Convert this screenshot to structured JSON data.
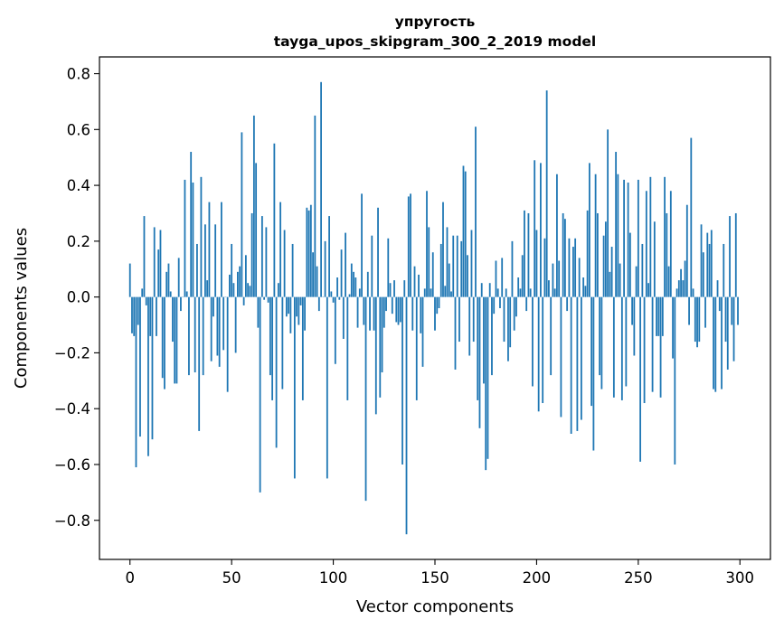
{
  "chart_data": {
    "type": "bar",
    "title_line1": "упругость",
    "title_line2": "tayga_upos_skipgram_300_2_2019 model",
    "xlabel": "Vector components",
    "ylabel": "Components values",
    "xlim": [
      -15,
      315
    ],
    "ylim": [
      -0.94,
      0.86
    ],
    "xticks": [
      0,
      50,
      100,
      150,
      200,
      250,
      300
    ],
    "xtick_labels": [
      "0",
      "50",
      "100",
      "150",
      "200",
      "250",
      "300"
    ],
    "yticks": [
      -0.8,
      -0.6,
      -0.4,
      -0.2,
      0.0,
      0.2,
      0.4,
      0.6,
      0.8
    ],
    "ytick_labels": [
      "−0.8",
      "−0.6",
      "−0.4",
      "−0.2",
      "0.0",
      "0.2",
      "0.4",
      "0.6",
      "0.8"
    ],
    "bar_color": "#1f77b4",
    "values": [
      0.12,
      -0.13,
      -0.14,
      -0.61,
      -0.1,
      -0.5,
      0.03,
      0.29,
      -0.03,
      -0.57,
      -0.14,
      -0.51,
      0.25,
      -0.14,
      0.17,
      0.24,
      -0.29,
      -0.33,
      0.09,
      0.12,
      0.02,
      -0.16,
      -0.31,
      -0.31,
      0.14,
      -0.05,
      0.0,
      0.42,
      0.02,
      -0.28,
      0.52,
      0.41,
      -0.27,
      0.19,
      -0.48,
      0.43,
      -0.28,
      0.26,
      0.06,
      0.34,
      -0.23,
      -0.07,
      0.26,
      -0.21,
      -0.25,
      0.34,
      -0.19,
      0.0,
      -0.34,
      0.08,
      0.19,
      0.05,
      -0.2,
      0.09,
      0.11,
      0.59,
      -0.03,
      0.15,
      0.05,
      0.04,
      0.3,
      0.65,
      0.48,
      -0.11,
      -0.7,
      0.29,
      -0.01,
      0.25,
      -0.02,
      -0.28,
      -0.37,
      0.55,
      -0.54,
      0.05,
      0.34,
      -0.33,
      0.24,
      -0.07,
      -0.06,
      -0.13,
      0.19,
      -0.65,
      -0.07,
      -0.1,
      -0.03,
      -0.37,
      -0.12,
      0.32,
      0.31,
      0.33,
      0.16,
      0.65,
      0.11,
      -0.05,
      0.77,
      0.0,
      0.2,
      -0.65,
      0.29,
      0.02,
      -0.02,
      -0.24,
      0.07,
      -0.01,
      0.17,
      -0.15,
      0.23,
      -0.37,
      0.01,
      0.12,
      0.09,
      0.07,
      -0.11,
      0.03,
      0.37,
      -0.1,
      -0.73,
      0.09,
      -0.12,
      0.22,
      -0.12,
      -0.42,
      0.32,
      -0.36,
      -0.27,
      -0.11,
      -0.05,
      0.21,
      0.05,
      -0.06,
      0.06,
      -0.09,
      -0.1,
      -0.09,
      -0.6,
      0.06,
      -0.85,
      0.36,
      0.37,
      -0.12,
      0.11,
      -0.37,
      0.08,
      -0.13,
      -0.25,
      0.03,
      0.38,
      0.25,
      0.03,
      0.16,
      -0.12,
      -0.06,
      -0.04,
      0.19,
      0.34,
      0.04,
      0.25,
      0.12,
      0.02,
      0.22,
      -0.26,
      0.22,
      -0.16,
      0.2,
      0.47,
      0.45,
      0.15,
      -0.21,
      0.24,
      -0.16,
      0.61,
      -0.37,
      -0.47,
      0.05,
      -0.31,
      -0.62,
      -0.58,
      0.05,
      -0.28,
      -0.06,
      0.13,
      0.03,
      -0.04,
      0.14,
      -0.16,
      0.03,
      -0.23,
      -0.18,
      0.2,
      -0.12,
      -0.07,
      0.07,
      0.03,
      0.15,
      0.31,
      -0.05,
      0.3,
      0.03,
      -0.32,
      0.49,
      0.24,
      -0.41,
      0.48,
      -0.38,
      0.21,
      0.74,
      0.06,
      -0.28,
      0.12,
      0.03,
      0.44,
      0.13,
      -0.43,
      0.3,
      0.28,
      -0.05,
      0.21,
      -0.49,
      0.18,
      0.21,
      -0.48,
      0.14,
      -0.44,
      0.07,
      0.04,
      0.31,
      0.48,
      -0.39,
      -0.55,
      0.44,
      0.3,
      -0.28,
      -0.33,
      0.22,
      0.27,
      0.6,
      0.09,
      0.18,
      -0.36,
      0.52,
      0.44,
      0.12,
      -0.37,
      0.42,
      -0.32,
      0.41,
      0.23,
      -0.1,
      -0.21,
      0.11,
      0.42,
      -0.59,
      0.19,
      -0.38,
      0.38,
      0.05,
      0.43,
      -0.34,
      0.27,
      -0.14,
      -0.14,
      -0.36,
      -0.14,
      0.43,
      0.3,
      0.11,
      0.38,
      -0.22,
      -0.6,
      0.03,
      0.06,
      0.1,
      0.06,
      0.13,
      0.33,
      -0.1,
      0.57,
      0.03,
      -0.16,
      -0.18,
      -0.16,
      0.26,
      0.16,
      -0.11,
      0.23,
      0.19,
      0.24,
      -0.33,
      -0.34,
      0.06,
      -0.05,
      -0.33,
      0.19,
      -0.16,
      -0.26,
      0.29,
      -0.1,
      -0.23,
      0.3,
      -0.1
    ]
  }
}
